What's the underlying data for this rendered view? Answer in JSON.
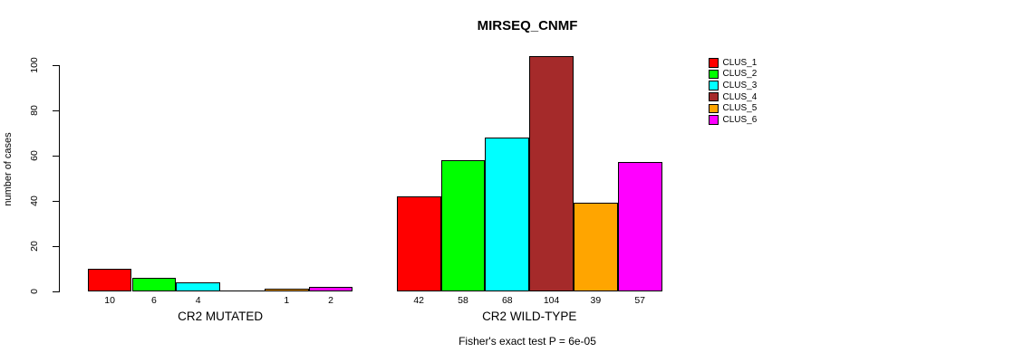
{
  "chart_data": {
    "type": "bar",
    "title": "MIRSEQ_CNMF",
    "ylabel": "number of cases",
    "xlabel": "",
    "ylim": [
      0,
      100
    ],
    "yticks": [
      0,
      20,
      40,
      60,
      80,
      100
    ],
    "grid": false,
    "legend_position": "right-inside",
    "categories": [
      "CR2 MUTATED",
      "CR2 WILD-TYPE"
    ],
    "series": [
      {
        "name": "CLUS_1",
        "color": "#FF0000",
        "values": [
          10,
          42
        ]
      },
      {
        "name": "CLUS_2",
        "color": "#00FF00",
        "values": [
          6,
          58
        ]
      },
      {
        "name": "CLUS_3",
        "color": "#00FFFF",
        "values": [
          4,
          68
        ]
      },
      {
        "name": "CLUS_4",
        "color": "#A52A2A",
        "values": [
          0,
          104
        ]
      },
      {
        "name": "CLUS_5",
        "color": "#FFA500",
        "values": [
          1,
          39
        ]
      },
      {
        "name": "CLUS_6",
        "color": "#FF00FF",
        "values": [
          2,
          57
        ]
      }
    ],
    "bar_value_labels": [
      [
        "10",
        "6",
        "4",
        "",
        "1",
        "2"
      ],
      [
        "42",
        "58",
        "68",
        "104",
        "39",
        "57"
      ]
    ],
    "annotation": "Fisher's exact test P = 6e-05"
  },
  "colors": {
    "background": "#FFFFFF",
    "axis": "#000000",
    "text": "#000000"
  }
}
